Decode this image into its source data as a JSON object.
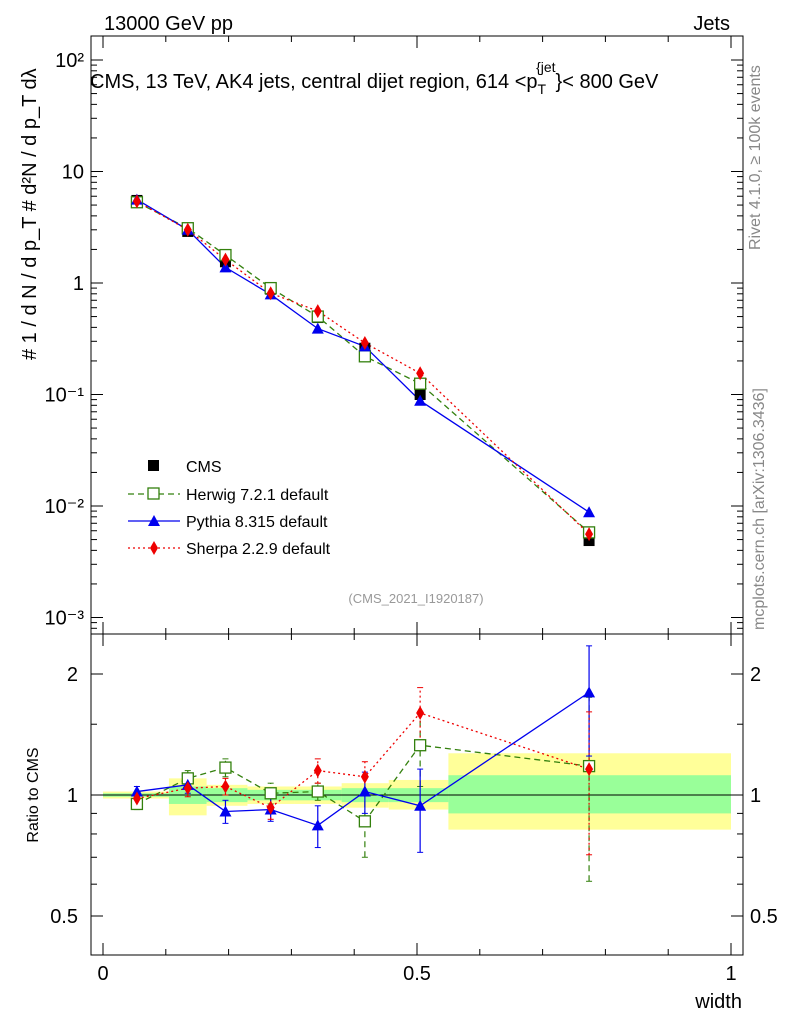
{
  "header": {
    "left": "13000 GeV pp",
    "right": "Jets",
    "title": "CMS, 13 TeV, AK4 jets, central dijet region, 614 <p",
    "title_sub": "T",
    "title_sup": "{jet",
    "title_end": "}< 800 GeV",
    "rivet": "Rivet 4.1.0, ≥ 100k events",
    "mcplots": "mcplots.cern.ch [arXiv:1306.3436]",
    "analysis_id": "(CMS_2021_I1920187)"
  },
  "axes": {
    "main_ylabel": "# 1 / d N / d p_T # d²N / d p_T dλ",
    "ratio_ylabel": "Ratio to CMS",
    "xlabel": "width",
    "x_ticks": [
      "0",
      "0.5",
      "1"
    ],
    "main_y_ticks": [
      "10⁻³",
      "10⁻²",
      "10⁻¹",
      "1",
      "10",
      "10²"
    ],
    "ratio_y_ticks": [
      "0.5",
      "1",
      "2"
    ]
  },
  "legend": {
    "cms": "CMS",
    "herwig": "Herwig 7.2.1 default",
    "pythia": "Pythia 8.315 default",
    "sherpa": "Sherpa 2.2.9 default"
  },
  "colors": {
    "herwig": "#33800d",
    "pythia": "#0000ee",
    "sherpa": "#ee0000",
    "band_inner": "#99ff99",
    "band_outer": "#ffff99"
  },
  "chart_data": {
    "type": "line",
    "x_range": [
      0,
      1
    ],
    "main_y_range": [
      0.001,
      200
    ],
    "main_y_scale": "log",
    "ratio_y_range": [
      0.4,
      2.4
    ],
    "ratio_y_scale": "log",
    "cms": {
      "x": [
        0.054,
        0.135,
        0.195,
        0.267,
        0.342,
        0.417,
        0.505,
        0.774
      ],
      "y": [
        5.5,
        2.9,
        1.55,
        0.88,
        0.49,
        0.26,
        0.1,
        0.0049
      ],
      "band_inner": [
        [
          0.0,
          0.105,
          0.99,
          1.01
        ],
        [
          0.105,
          0.165,
          0.95,
          1.05
        ],
        [
          0.165,
          0.23,
          0.96,
          1.04
        ],
        [
          0.23,
          0.305,
          0.97,
          1.03
        ],
        [
          0.305,
          0.38,
          0.97,
          1.03
        ],
        [
          0.38,
          0.455,
          0.96,
          1.04
        ],
        [
          0.455,
          0.55,
          0.96,
          1.04
        ],
        [
          0.55,
          1.0,
          0.9,
          1.12
        ]
      ],
      "band_outer": [
        [
          0.0,
          0.105,
          0.98,
          1.02
        ],
        [
          0.105,
          0.165,
          0.89,
          1.1
        ],
        [
          0.165,
          0.23,
          0.94,
          1.06
        ],
        [
          0.23,
          0.305,
          0.95,
          1.05
        ],
        [
          0.305,
          0.38,
          0.95,
          1.05
        ],
        [
          0.38,
          0.455,
          0.93,
          1.07
        ],
        [
          0.455,
          0.55,
          0.92,
          1.09
        ],
        [
          0.55,
          1.0,
          0.82,
          1.27
        ]
      ]
    },
    "series": [
      {
        "name": "Herwig 7.2.1 default",
        "key": "herwig",
        "marker": "open-square",
        "dash": "6,4",
        "y": [
          5.3,
          3.1,
          1.78,
          0.9,
          0.5,
          0.22,
          0.125,
          0.0058
        ],
        "ratio": [
          0.95,
          1.1,
          1.17,
          1.01,
          1.02,
          0.86,
          1.33,
          1.18
        ],
        "ratio_err": [
          0.03,
          0.05,
          0.06,
          0.06,
          0.05,
          0.16,
          0.28,
          0.57
        ]
      },
      {
        "name": "Pythia 8.315 default",
        "key": "pythia",
        "marker": "triangle",
        "dash": "",
        "y": [
          5.6,
          3.0,
          1.38,
          0.79,
          0.39,
          0.27,
          0.088,
          0.0088
        ],
        "ratio": [
          1.02,
          1.06,
          0.91,
          0.92,
          0.84,
          1.02,
          0.94,
          1.8
        ],
        "ratio_err": [
          0.03,
          0.05,
          0.06,
          0.06,
          0.1,
          0.12,
          0.22,
          0.55
        ]
      },
      {
        "name": "Sherpa 2.2.9 default",
        "key": "sherpa",
        "marker": "diamond",
        "dash": "2,3",
        "y": [
          5.4,
          3.0,
          1.62,
          0.81,
          0.56,
          0.29,
          0.155,
          0.0056
        ],
        "ratio": [
          0.98,
          1.04,
          1.05,
          0.93,
          1.15,
          1.11,
          1.6,
          1.16
        ],
        "ratio_err": [
          0.03,
          0.05,
          0.05,
          0.06,
          0.08,
          0.1,
          0.25,
          0.45
        ]
      }
    ]
  }
}
